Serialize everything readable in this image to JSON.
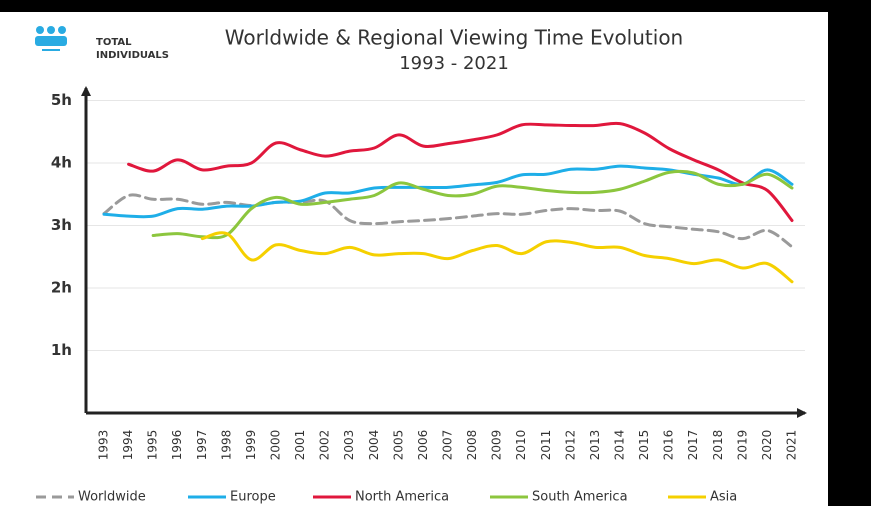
{
  "chart_data": {
    "type": "line",
    "title": "Worldwide & Regional Viewing Time Evolution",
    "subtitle": "1993 - 2021",
    "badge": [
      "TOTAL",
      "INDIVIDUALS"
    ],
    "categories": [
      "1993",
      "1994",
      "1995",
      "1996",
      "1997",
      "1998",
      "1999",
      "2000",
      "2001",
      "2002",
      "2003",
      "2004",
      "2005",
      "2006",
      "2007",
      "2008",
      "2009",
      "2010",
      "2011",
      "2012",
      "2013",
      "2014",
      "2015",
      "2016",
      "2017",
      "2018",
      "2019",
      "2020",
      "2021"
    ],
    "ylim": [
      0,
      5.2
    ],
    "yticks": [
      {
        "value": 1,
        "label": "1h"
      },
      {
        "value": 2,
        "label": "2h"
      },
      {
        "value": 3,
        "label": "3h"
      },
      {
        "value": 4,
        "label": "4h"
      },
      {
        "value": 5,
        "label": "5h"
      }
    ],
    "grid": true,
    "legend": "bottom",
    "series": [
      {
        "name": "Worldwide",
        "color": "#9a9a9a",
        "dashed": true,
        "values": [
          3.19,
          3.48,
          3.42,
          3.42,
          3.34,
          3.37,
          3.32,
          3.37,
          3.37,
          3.39,
          3.08,
          3.03,
          3.06,
          3.08,
          3.11,
          3.15,
          3.19,
          3.18,
          3.24,
          3.27,
          3.24,
          3.23,
          3.03,
          2.98,
          2.94,
          2.9,
          2.79,
          2.92,
          2.66
        ]
      },
      {
        "name": "Europe",
        "color": "#1eaee8",
        "values": [
          3.18,
          3.15,
          3.15,
          3.27,
          3.26,
          3.31,
          3.31,
          3.37,
          3.39,
          3.52,
          3.52,
          3.6,
          3.61,
          3.61,
          3.61,
          3.65,
          3.69,
          3.81,
          3.82,
          3.9,
          3.9,
          3.95,
          3.92,
          3.89,
          3.82,
          3.76,
          3.66,
          3.89,
          3.66
        ]
      },
      {
        "name": "North America",
        "color": "#e0173c",
        "values": [
          null,
          3.98,
          3.87,
          4.05,
          3.89,
          3.95,
          4.0,
          4.32,
          4.21,
          4.11,
          4.19,
          4.24,
          4.45,
          4.27,
          4.31,
          4.37,
          4.45,
          4.61,
          4.61,
          4.6,
          4.6,
          4.63,
          4.48,
          4.23,
          4.05,
          3.89,
          3.68,
          3.56,
          3.08
        ]
      },
      {
        "name": "South America",
        "color": "#8cc63e",
        "values": [
          null,
          null,
          2.84,
          2.87,
          2.82,
          2.85,
          3.27,
          3.45,
          3.34,
          3.37,
          3.42,
          3.48,
          3.68,
          3.58,
          3.48,
          3.5,
          3.63,
          3.61,
          3.56,
          3.53,
          3.53,
          3.58,
          3.71,
          3.85,
          3.84,
          3.66,
          3.66,
          3.82,
          3.6
        ]
      },
      {
        "name": "Asia",
        "color": "#f5d000",
        "values": [
          null,
          null,
          null,
          null,
          2.79,
          2.87,
          2.45,
          2.69,
          2.6,
          2.55,
          2.65,
          2.53,
          2.55,
          2.55,
          2.47,
          2.6,
          2.68,
          2.55,
          2.74,
          2.73,
          2.65,
          2.65,
          2.52,
          2.47,
          2.39,
          2.45,
          2.32,
          2.39,
          2.1
        ]
      }
    ]
  }
}
